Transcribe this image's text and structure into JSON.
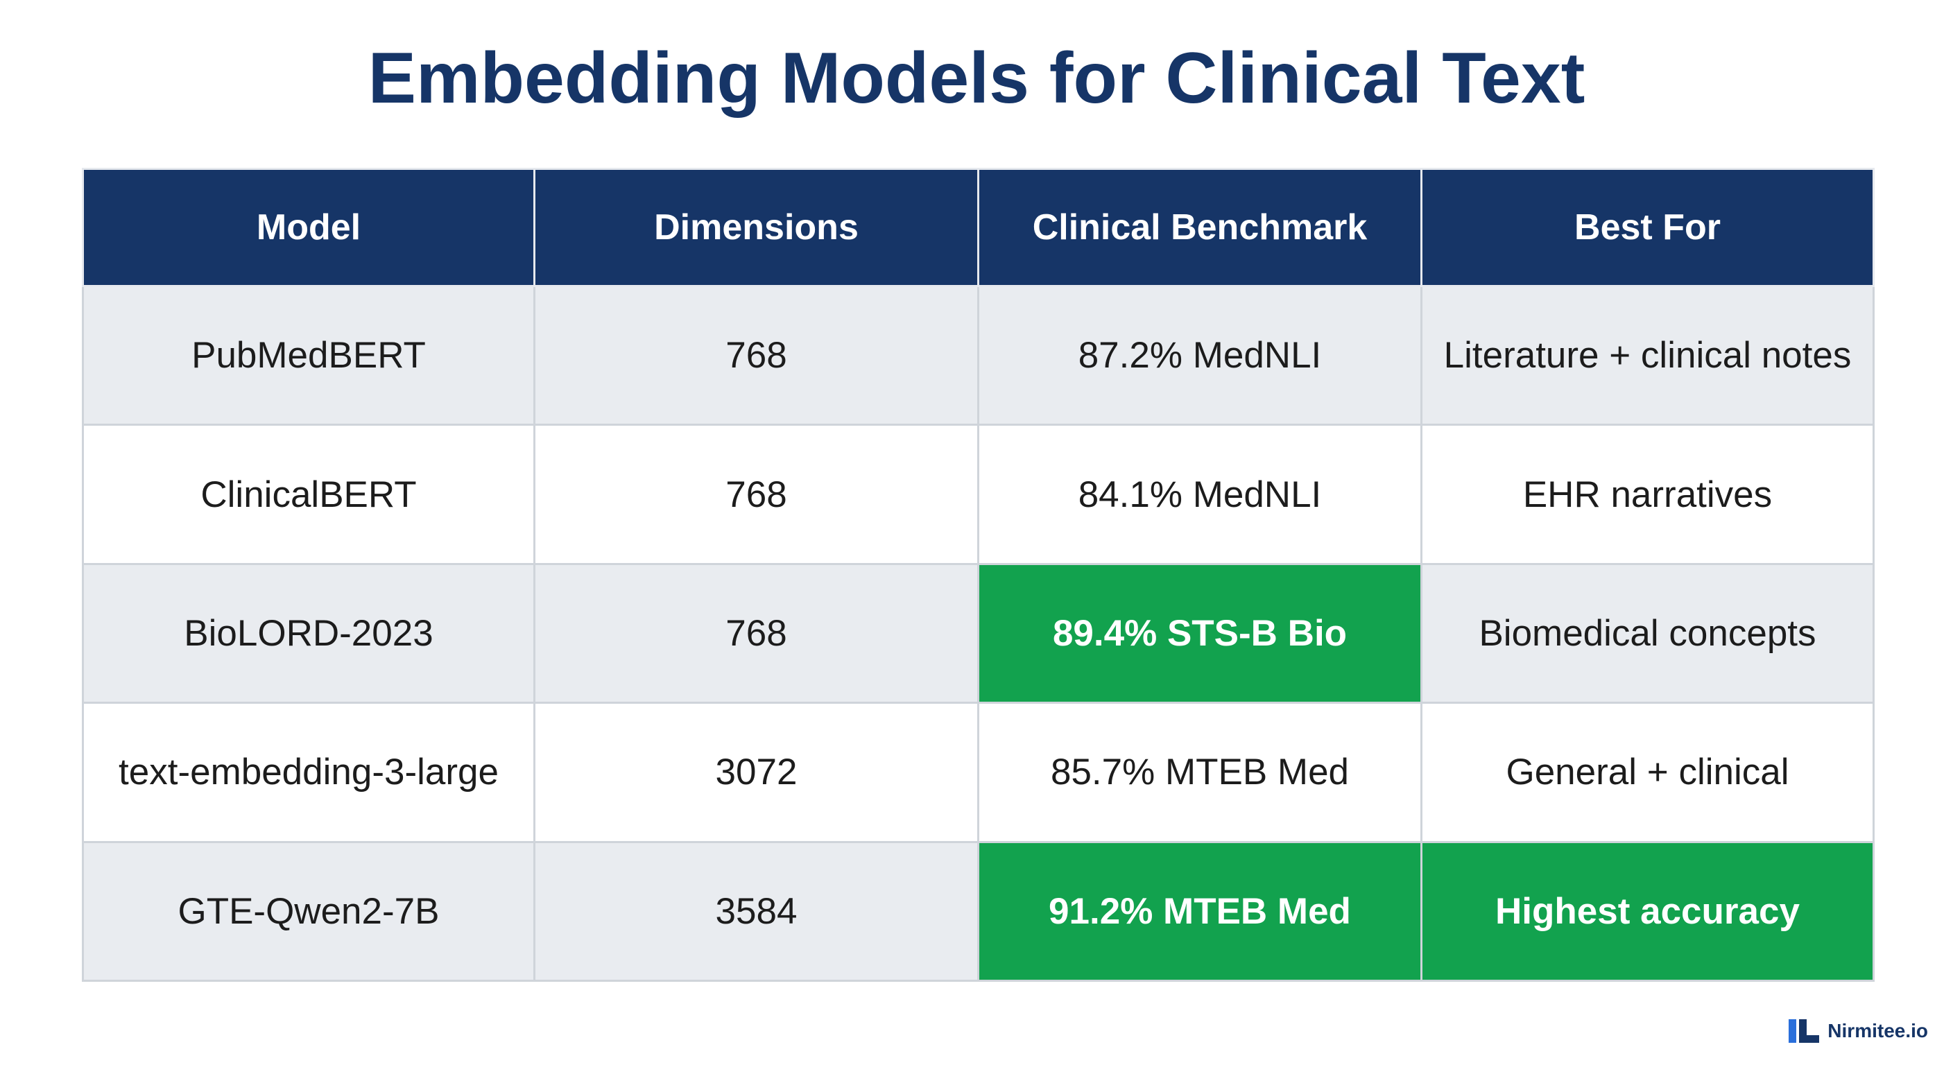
{
  "title": "Embedding Models for Clinical Text",
  "colors": {
    "header_bg": "#163567",
    "highlight": "#12a24e",
    "shaded_row": "#e9ecf0",
    "title_text": "#163567"
  },
  "table": {
    "headers": [
      "Model",
      "Dimensions",
      "Clinical Benchmark",
      "Best For"
    ],
    "rows": [
      {
        "model": "PubMedBERT",
        "dimensions": "768",
        "benchmark": "87.2% MedNLI",
        "best_for": "Literature + clinical notes"
      },
      {
        "model": "ClinicalBERT",
        "dimensions": "768",
        "benchmark": "84.1% MedNLI",
        "best_for": "EHR narratives"
      },
      {
        "model": "BioLORD-2023",
        "dimensions": "768",
        "benchmark": "89.4% STS-B Bio",
        "best_for": "Biomedical concepts"
      },
      {
        "model": "text-embedding-3-large",
        "dimensions": "3072",
        "benchmark": "85.7% MTEB Med",
        "best_for": "General + clinical"
      },
      {
        "model": "GTE-Qwen2-7B",
        "dimensions": "3584",
        "benchmark": "91.2% MTEB Med",
        "best_for": "Highest accuracy"
      }
    ]
  },
  "brand": {
    "name": "Nirmitee.io",
    "icon": "nirmitee-logo-icon"
  }
}
